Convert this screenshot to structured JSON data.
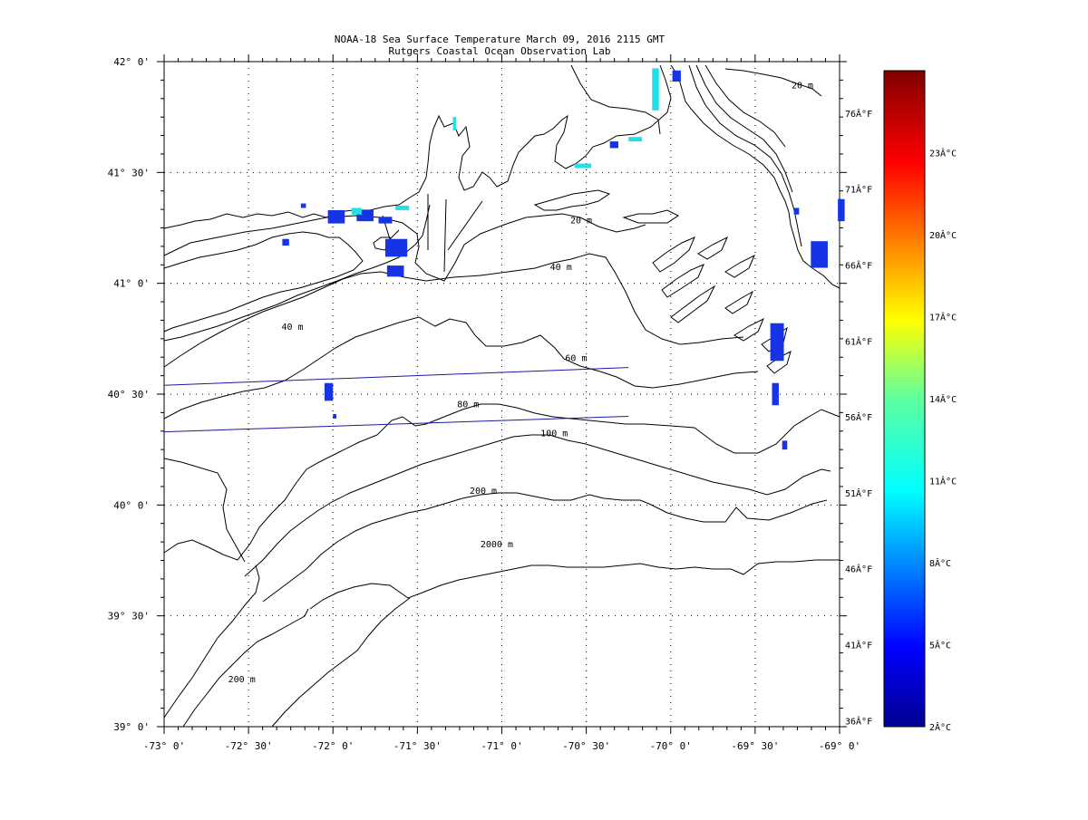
{
  "title": {
    "line1": "NOAA-18 Sea Surface Temperature March 09, 2016 2115 GMT",
    "line2": "Rutgers Coastal Ocean Observation Lab"
  },
  "colors": {
    "title_text": "#1a1aa0",
    "axis": "#000000",
    "contour": "#000000",
    "transect": "#1a1aa0",
    "cold_patch": "#1633e6",
    "cyan_patch": "#22e0e6"
  },
  "axes": {
    "lon_range": [
      -73,
      -69
    ],
    "lat_range": [
      39,
      42
    ],
    "lon_ticks": [
      {
        "value": -73.0,
        "label": "-73° 0'"
      },
      {
        "value": -72.5,
        "label": "-72° 30'"
      },
      {
        "value": -72.0,
        "label": "-72° 0'"
      },
      {
        "value": -71.5,
        "label": "-71° 30'"
      },
      {
        "value": -71.0,
        "label": "-71° 0'"
      },
      {
        "value": -70.5,
        "label": "-70° 30'"
      },
      {
        "value": -70.0,
        "label": "-70° 0'"
      },
      {
        "value": -69.5,
        "label": "-69° 30'"
      },
      {
        "value": -69.0,
        "label": "-69° 0'"
      }
    ],
    "lat_ticks": [
      {
        "value": 42.0,
        "label": "42° 0'"
      },
      {
        "value": 41.5,
        "label": "41° 30'"
      },
      {
        "value": 41.0,
        "label": "41° 0'"
      },
      {
        "value": 40.5,
        "label": "40° 30'"
      },
      {
        "value": 40.0,
        "label": "40° 0'"
      },
      {
        "value": 39.5,
        "label": "39° 30'"
      },
      {
        "value": 39.0,
        "label": "39° 0'"
      }
    ]
  },
  "fahrenheit_ticks": [
    {
      "value": 76,
      "label": "76Â°F"
    },
    {
      "value": 71,
      "label": "71Â°F"
    },
    {
      "value": 66,
      "label": "66Â°F"
    },
    {
      "value": 61,
      "label": "61Â°F"
    },
    {
      "value": 56,
      "label": "56Â°F"
    },
    {
      "value": 51,
      "label": "51Â°F"
    },
    {
      "value": 46,
      "label": "46Â°F"
    },
    {
      "value": 41,
      "label": "41Â°F"
    },
    {
      "value": 36,
      "label": "36Â°F"
    }
  ],
  "colorbar": {
    "min": 2,
    "max": 26,
    "ticks": [
      {
        "value": 23,
        "label": "23Â°C"
      },
      {
        "value": 20,
        "label": "20Â°C"
      },
      {
        "value": 17,
        "label": "17Â°C"
      },
      {
        "value": 14,
        "label": "14Â°C"
      },
      {
        "value": 11,
        "label": "11Â°C"
      },
      {
        "value": 8,
        "label": "8Â°C"
      },
      {
        "value": 5,
        "label": "5Â°C"
      },
      {
        "value": 2,
        "label": "2Â°C"
      }
    ]
  },
  "contour_labels": [
    {
      "text": "20 m",
      "lon": -70.53,
      "lat": 41.27
    },
    {
      "text": "40 m",
      "lon": -70.65,
      "lat": 41.06
    },
    {
      "text": "40 m",
      "lon": -72.24,
      "lat": 40.79
    },
    {
      "text": "60 m",
      "lon": -70.56,
      "lat": 40.65
    },
    {
      "text": "80 m",
      "lon": -71.2,
      "lat": 40.44
    },
    {
      "text": "100 m",
      "lon": -70.69,
      "lat": 40.31
    },
    {
      "text": "200 m",
      "lon": -71.11,
      "lat": 40.05
    },
    {
      "text": "2000 m",
      "lon": -71.03,
      "lat": 39.81
    },
    {
      "text": "200 m",
      "lon": -72.54,
      "lat": 39.2
    },
    {
      "text": "20 m",
      "lon": -69.22,
      "lat": 41.88
    }
  ],
  "sst_patches": [
    {
      "lon": -72.03,
      "lat": 41.33,
      "w": 0.1,
      "h": 0.06,
      "kind": "cold"
    },
    {
      "lon": -71.86,
      "lat": 41.33,
      "w": 0.1,
      "h": 0.05,
      "kind": "cold"
    },
    {
      "lon": -71.73,
      "lat": 41.3,
      "w": 0.08,
      "h": 0.03,
      "kind": "cold"
    },
    {
      "lon": -71.69,
      "lat": 41.2,
      "w": 0.13,
      "h": 0.08,
      "kind": "cold"
    },
    {
      "lon": -71.68,
      "lat": 41.08,
      "w": 0.1,
      "h": 0.05,
      "kind": "cold"
    },
    {
      "lon": -72.3,
      "lat": 41.2,
      "w": 0.04,
      "h": 0.03,
      "kind": "cold"
    },
    {
      "lon": -72.05,
      "lat": 40.55,
      "w": 0.05,
      "h": 0.08,
      "kind": "cold"
    },
    {
      "lon": -72.0,
      "lat": 40.41,
      "w": 0.02,
      "h": 0.02,
      "kind": "cold"
    },
    {
      "lon": -69.41,
      "lat": 40.82,
      "w": 0.08,
      "h": 0.17,
      "kind": "cold"
    },
    {
      "lon": -69.4,
      "lat": 40.55,
      "w": 0.04,
      "h": 0.1,
      "kind": "cold"
    },
    {
      "lon": -69.34,
      "lat": 40.29,
      "w": 0.03,
      "h": 0.04,
      "kind": "cold"
    },
    {
      "lon": -69.17,
      "lat": 41.19,
      "w": 0.1,
      "h": 0.12,
      "kind": "cold"
    },
    {
      "lon": -69.01,
      "lat": 41.38,
      "w": 0.04,
      "h": 0.1,
      "kind": "cold"
    },
    {
      "lon": -69.99,
      "lat": 41.96,
      "w": 0.05,
      "h": 0.05,
      "kind": "cold"
    },
    {
      "lon": -70.36,
      "lat": 41.64,
      "w": 0.05,
      "h": 0.03,
      "kind": "cold"
    },
    {
      "lon": -69.27,
      "lat": 41.34,
      "w": 0.03,
      "h": 0.03,
      "kind": "cold"
    },
    {
      "lon": -72.19,
      "lat": 41.36,
      "w": 0.03,
      "h": 0.02,
      "kind": "cold"
    },
    {
      "lon": -70.11,
      "lat": 41.97,
      "w": 0.04,
      "h": 0.19,
      "kind": "cyan"
    },
    {
      "lon": -71.63,
      "lat": 41.35,
      "w": 0.08,
      "h": 0.02,
      "kind": "cyan"
    },
    {
      "lon": -70.57,
      "lat": 41.54,
      "w": 0.1,
      "h": 0.02,
      "kind": "cyan"
    },
    {
      "lon": -70.25,
      "lat": 41.66,
      "w": 0.08,
      "h": 0.02,
      "kind": "cyan"
    },
    {
      "lon": -71.29,
      "lat": 41.75,
      "w": 0.02,
      "h": 0.06,
      "kind": "cyan"
    },
    {
      "lon": -71.89,
      "lat": 41.34,
      "w": 0.06,
      "h": 0.03,
      "kind": "cyan"
    }
  ],
  "transects": [
    {
      "from": [
        -73.0,
        40.54
      ],
      "to": [
        -70.25,
        40.62
      ]
    },
    {
      "from": [
        -73.0,
        40.33
      ],
      "to": [
        -70.25,
        40.4
      ]
    }
  ]
}
